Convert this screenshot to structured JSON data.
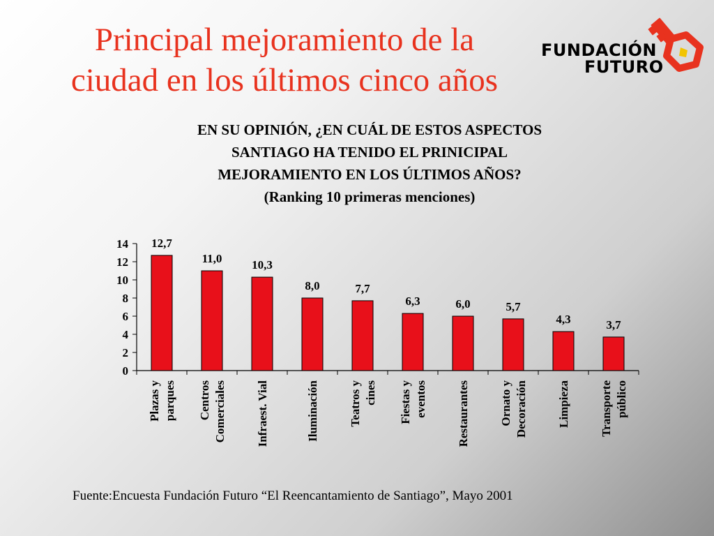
{
  "slide": {
    "title_line1": "Principal mejoramiento de la",
    "title_line2": "ciudad en los últimos cinco años",
    "question_line1": "EN SU OPINIÓN, ¿EN CUÁL DE ESTOS ASPECTOS",
    "question_line2": "SANTIAGO HA TENIDO EL PRINICIPAL",
    "question_line3": "MEJORAMIENTO EN LOS ÚLTIMOS AÑOS?",
    "question_line4": "(Ranking 10 primeras menciones)",
    "source": "Fuente:Encuesta Fundación Futuro  “El Reencantamiento de Santiago”, Mayo 2001",
    "title_color": "#e8321e"
  },
  "logo": {
    "line1": "FUNDACIÓN",
    "line2": "FUTURO",
    "icon": "key-icon",
    "color": "#e8321e"
  },
  "chart_data": {
    "type": "bar",
    "categories": [
      [
        "Plazas y",
        "parques"
      ],
      [
        "Centros",
        "Comerciales"
      ],
      [
        "Infraest. Vial"
      ],
      [
        "Iluminación"
      ],
      [
        "Teatros y",
        "cines"
      ],
      [
        "Fiestas y",
        "eventos"
      ],
      [
        "Restaurantes"
      ],
      [
        "Ornato y",
        "Decoración"
      ],
      [
        "Limpieza"
      ],
      [
        "Transporte",
        "público"
      ]
    ],
    "values": [
      12.7,
      11.0,
      10.3,
      8.0,
      7.7,
      6.3,
      6.0,
      5.7,
      4.3,
      3.7
    ],
    "value_labels": [
      "12,7",
      "11,0",
      "10,3",
      "8,0",
      "7,7",
      "6,3",
      "6,0",
      "5,7",
      "4,3",
      "3,7"
    ],
    "yticks": [
      "0",
      "2",
      "4",
      "6",
      "8",
      "10",
      "12",
      "14"
    ],
    "ylim": [
      0,
      14
    ],
    "bar_color": "#e8101a",
    "grid": false,
    "legend": false
  }
}
